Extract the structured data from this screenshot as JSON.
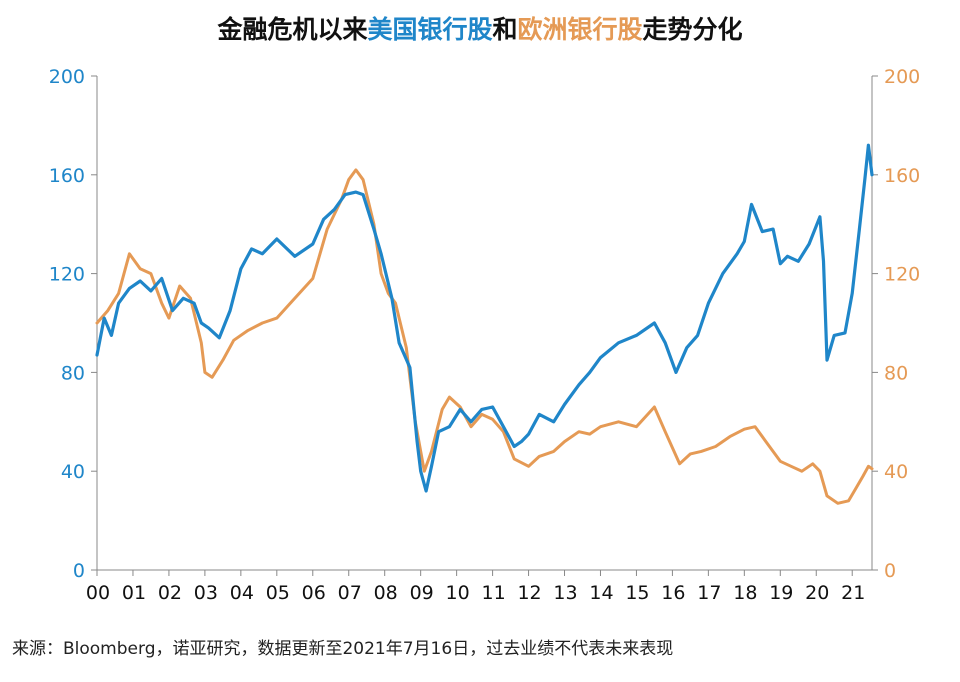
{
  "title": {
    "prefix": "金融危机以来",
    "us": "美国银行股",
    "mid": "和",
    "eu": "欧洲银行股",
    "suffix": "走势分化"
  },
  "source": "来源：Bloomberg，诺亚研究，数据更新至2021年7月16日，过去业绩不代表未来表现",
  "colors": {
    "us": "#1f86c9",
    "eu": "#e59a55",
    "left_axis": "#1f86c9",
    "right_axis": "#e59a55",
    "axis": "#888888"
  },
  "chart_data": {
    "type": "line",
    "x_categories": [
      "00",
      "01",
      "02",
      "03",
      "04",
      "05",
      "06",
      "07",
      "08",
      "09",
      "10",
      "11",
      "12",
      "13",
      "14",
      "15",
      "16",
      "17",
      "18",
      "19",
      "20",
      "21"
    ],
    "x_range": [
      2000.0,
      2021.55
    ],
    "y_left": {
      "lim": [
        0,
        200
      ],
      "ticks": [
        0,
        40,
        80,
        120,
        160,
        200
      ]
    },
    "y_right": {
      "lim": [
        0,
        200
      ],
      "ticks": [
        0,
        40,
        80,
        120,
        160,
        200
      ]
    },
    "grid": false,
    "legend": "none",
    "series": [
      {
        "axis": "left",
        "color": "#1f86c9",
        "points": [
          [
            2000.0,
            87
          ],
          [
            2000.2,
            102
          ],
          [
            2000.4,
            95
          ],
          [
            2000.6,
            108
          ],
          [
            2000.9,
            114
          ],
          [
            2001.2,
            117
          ],
          [
            2001.5,
            113
          ],
          [
            2001.8,
            118
          ],
          [
            2002.1,
            105
          ],
          [
            2002.4,
            110
          ],
          [
            2002.7,
            108
          ],
          [
            2002.9,
            100
          ],
          [
            2003.1,
            98
          ],
          [
            2003.4,
            94
          ],
          [
            2003.7,
            105
          ],
          [
            2004.0,
            122
          ],
          [
            2004.3,
            130
          ],
          [
            2004.6,
            128
          ],
          [
            2005.0,
            134
          ],
          [
            2005.5,
            127
          ],
          [
            2006.0,
            132
          ],
          [
            2006.3,
            142
          ],
          [
            2006.6,
            146
          ],
          [
            2006.9,
            152
          ],
          [
            2007.2,
            153
          ],
          [
            2007.4,
            152
          ],
          [
            2007.7,
            138
          ],
          [
            2007.9,
            128
          ],
          [
            2008.2,
            110
          ],
          [
            2008.4,
            92
          ],
          [
            2008.7,
            82
          ],
          [
            2008.9,
            52
          ],
          [
            2009.0,
            40
          ],
          [
            2009.15,
            32
          ],
          [
            2009.3,
            42
          ],
          [
            2009.5,
            56
          ],
          [
            2009.8,
            58
          ],
          [
            2010.1,
            65
          ],
          [
            2010.4,
            60
          ],
          [
            2010.7,
            65
          ],
          [
            2011.0,
            66
          ],
          [
            2011.3,
            58
          ],
          [
            2011.6,
            50
          ],
          [
            2011.8,
            52
          ],
          [
            2012.0,
            55
          ],
          [
            2012.3,
            63
          ],
          [
            2012.7,
            60
          ],
          [
            2013.0,
            67
          ],
          [
            2013.4,
            75
          ],
          [
            2013.7,
            80
          ],
          [
            2014.0,
            86
          ],
          [
            2014.5,
            92
          ],
          [
            2015.0,
            95
          ],
          [
            2015.5,
            100
          ],
          [
            2015.8,
            92
          ],
          [
            2016.1,
            80
          ],
          [
            2016.4,
            90
          ],
          [
            2016.7,
            95
          ],
          [
            2017.0,
            108
          ],
          [
            2017.4,
            120
          ],
          [
            2017.8,
            128
          ],
          [
            2018.0,
            133
          ],
          [
            2018.2,
            148
          ],
          [
            2018.5,
            137
          ],
          [
            2018.8,
            138
          ],
          [
            2019.0,
            124
          ],
          [
            2019.2,
            127
          ],
          [
            2019.5,
            125
          ],
          [
            2019.8,
            132
          ],
          [
            2020.1,
            143
          ],
          [
            2020.2,
            125
          ],
          [
            2020.3,
            85
          ],
          [
            2020.5,
            95
          ],
          [
            2020.8,
            96
          ],
          [
            2021.0,
            112
          ],
          [
            2021.2,
            138
          ],
          [
            2021.35,
            158
          ],
          [
            2021.45,
            172
          ],
          [
            2021.55,
            160
          ]
        ]
      },
      {
        "axis": "right",
        "color": "#e59a55",
        "points": [
          [
            2000.0,
            100
          ],
          [
            2000.3,
            105
          ],
          [
            2000.6,
            112
          ],
          [
            2000.9,
            128
          ],
          [
            2001.2,
            122
          ],
          [
            2001.5,
            120
          ],
          [
            2001.8,
            108
          ],
          [
            2002.0,
            102
          ],
          [
            2002.3,
            115
          ],
          [
            2002.6,
            110
          ],
          [
            2002.9,
            92
          ],
          [
            2003.0,
            80
          ],
          [
            2003.2,
            78
          ],
          [
            2003.5,
            85
          ],
          [
            2003.8,
            93
          ],
          [
            2004.2,
            97
          ],
          [
            2004.6,
            100
          ],
          [
            2005.0,
            102
          ],
          [
            2005.5,
            110
          ],
          [
            2006.0,
            118
          ],
          [
            2006.4,
            138
          ],
          [
            2006.8,
            150
          ],
          [
            2007.0,
            158
          ],
          [
            2007.2,
            162
          ],
          [
            2007.4,
            158
          ],
          [
            2007.7,
            140
          ],
          [
            2007.9,
            120
          ],
          [
            2008.1,
            112
          ],
          [
            2008.3,
            108
          ],
          [
            2008.6,
            90
          ],
          [
            2008.85,
            60
          ],
          [
            2009.1,
            40
          ],
          [
            2009.3,
            48
          ],
          [
            2009.6,
            65
          ],
          [
            2009.8,
            70
          ],
          [
            2010.1,
            66
          ],
          [
            2010.4,
            58
          ],
          [
            2010.7,
            63
          ],
          [
            2011.0,
            61
          ],
          [
            2011.3,
            56
          ],
          [
            2011.6,
            45
          ],
          [
            2012.0,
            42
          ],
          [
            2012.3,
            46
          ],
          [
            2012.7,
            48
          ],
          [
            2013.0,
            52
          ],
          [
            2013.4,
            56
          ],
          [
            2013.7,
            55
          ],
          [
            2014.0,
            58
          ],
          [
            2014.5,
            60
          ],
          [
            2015.0,
            58
          ],
          [
            2015.5,
            66
          ],
          [
            2015.8,
            56
          ],
          [
            2016.2,
            43
          ],
          [
            2016.5,
            47
          ],
          [
            2016.8,
            48
          ],
          [
            2017.2,
            50
          ],
          [
            2017.6,
            54
          ],
          [
            2018.0,
            57
          ],
          [
            2018.3,
            58
          ],
          [
            2018.6,
            52
          ],
          [
            2019.0,
            44
          ],
          [
            2019.3,
            42
          ],
          [
            2019.6,
            40
          ],
          [
            2019.9,
            43
          ],
          [
            2020.1,
            40
          ],
          [
            2020.3,
            30
          ],
          [
            2020.6,
            27
          ],
          [
            2020.9,
            28
          ],
          [
            2021.1,
            33
          ],
          [
            2021.3,
            38
          ],
          [
            2021.45,
            42
          ],
          [
            2021.55,
            41
          ]
        ]
      }
    ]
  }
}
